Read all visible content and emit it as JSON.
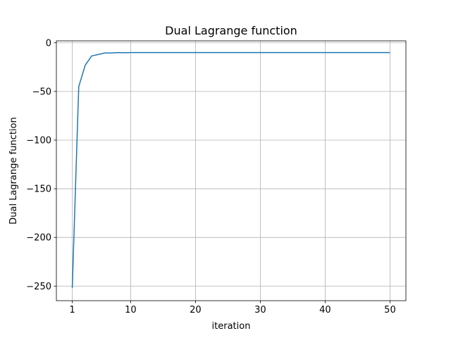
{
  "chart_data": {
    "type": "line",
    "title": "Dual Lagrange function",
    "xlabel": "iteration",
    "ylabel": "Dual Lagrange function",
    "xlim": [
      -1.45,
      52.45
    ],
    "ylim": [
      -265,
      2
    ],
    "x_ticks": [
      1,
      10,
      20,
      30,
      40,
      50
    ],
    "y_ticks": [
      0,
      -50,
      -100,
      -150,
      -200,
      -250
    ],
    "y_tick_labels": [
      "0",
      "−50",
      "−100",
      "−150",
      "−200",
      "−250"
    ],
    "grid": true,
    "series": [
      {
        "color": "#1f77b4",
        "x": [
          1,
          2,
          3,
          4,
          5,
          6,
          7,
          8,
          9,
          10,
          11,
          12,
          13,
          14,
          15,
          16,
          17,
          18,
          19,
          20,
          21,
          22,
          23,
          24,
          25,
          26,
          27,
          28,
          29,
          30,
          31,
          32,
          33,
          34,
          35,
          36,
          37,
          38,
          39,
          40,
          41,
          42,
          43,
          44,
          45,
          46,
          47,
          48,
          49,
          50
        ],
        "values": [
          -252,
          -45,
          -23,
          -13.5,
          -12,
          -10.5,
          -10.5,
          -10,
          -10.2,
          -10,
          -10,
          -10,
          -10,
          -10,
          -10,
          -10,
          -10,
          -10,
          -10,
          -10,
          -10,
          -10,
          -10,
          -10,
          -10,
          -10,
          -10,
          -10,
          -10,
          -10,
          -10,
          -10,
          -10,
          -10,
          -10,
          -10,
          -10,
          -10,
          -10,
          -10,
          -10,
          -10,
          -10,
          -10,
          -10,
          -10,
          -10,
          -10,
          -10,
          -10
        ]
      }
    ]
  }
}
